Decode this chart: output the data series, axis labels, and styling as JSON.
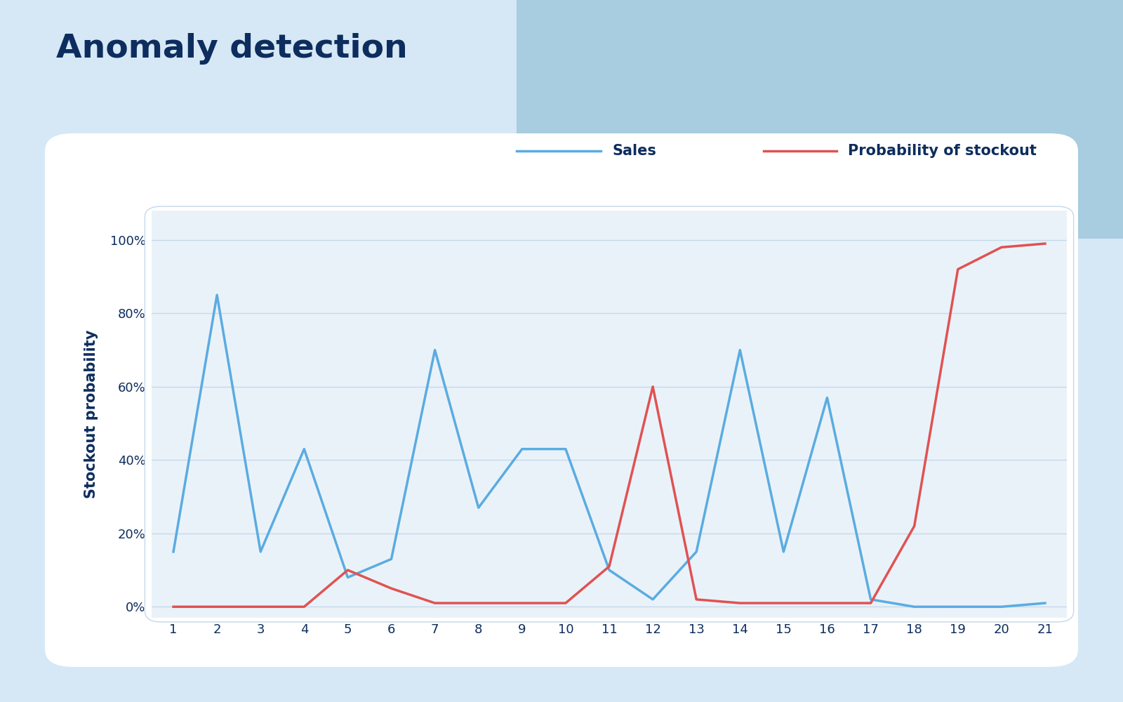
{
  "title": "Anomaly detection",
  "ylabel": "Stockout probability",
  "days": [
    1,
    2,
    3,
    4,
    5,
    6,
    7,
    8,
    9,
    10,
    11,
    12,
    13,
    14,
    15,
    16,
    17,
    18,
    19,
    20,
    21
  ],
  "sales": [
    15,
    85,
    15,
    43,
    8,
    13,
    70,
    27,
    43,
    43,
    10,
    2,
    15,
    70,
    15,
    57,
    2,
    0,
    0,
    0,
    1
  ],
  "stockout": [
    0,
    0,
    0,
    0,
    10,
    5,
    1,
    1,
    1,
    1,
    11,
    60,
    2,
    1,
    1,
    1,
    1,
    22,
    92,
    98,
    99
  ],
  "sales_color": "#5aace1",
  "stockout_color": "#e05252",
  "bg_color": "#d6e8f5",
  "panel_color": "#ffffff",
  "inner_plot_color": "#eaf2f9",
  "title_color": "#0d2d5e",
  "axis_text_color": "#0d2d5e",
  "grid_color": "#c5d8ea",
  "legend_label_sales": "Sales",
  "legend_label_stockout": "Probability of stockout",
  "yticks": [
    0,
    20,
    40,
    60,
    80,
    100
  ],
  "ytick_labels": [
    "0%",
    "20%",
    "40%",
    "60%",
    "80%",
    "100%"
  ],
  "ylim": [
    -3,
    108
  ],
  "title_fontsize": 34,
  "axis_label_fontsize": 15,
  "tick_fontsize": 13,
  "legend_fontsize": 15,
  "line_width": 2.5,
  "decorator_color": "#a8cce0"
}
